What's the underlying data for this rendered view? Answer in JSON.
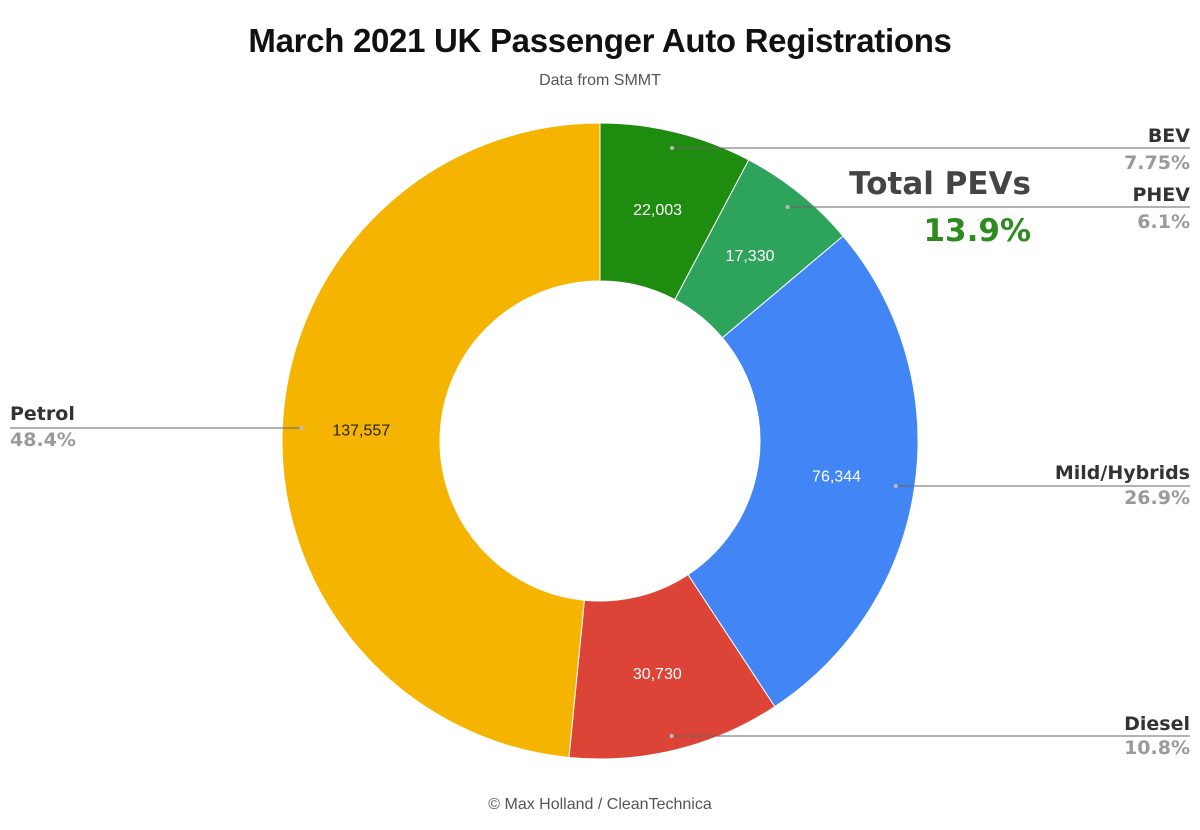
{
  "chart_data": {
    "type": "pie",
    "title": "March 2021 UK Passenger Auto Registrations",
    "subtitle": "Data from SMMT",
    "footer": "© Max Holland / CleanTechnica",
    "donut": true,
    "slices": [
      {
        "name": "BEV",
        "value": 22003,
        "value_label": "22,003",
        "pct_label": "7.75%",
        "color": "#1e8c0f"
      },
      {
        "name": "PHEV",
        "value": 17330,
        "value_label": "17,330",
        "pct_label": "6.1%",
        "color": "#2ea35b"
      },
      {
        "name": "Mild/Hybrids",
        "value": 76344,
        "value_label": "76,344",
        "pct_label": "26.9%",
        "color": "#4285f4"
      },
      {
        "name": "Diesel",
        "value": 30730,
        "value_label": "30,730",
        "pct_label": "10.8%",
        "color": "#db4437"
      },
      {
        "name": "Petrol",
        "value": 137557,
        "value_label": "137,557",
        "pct_label": "48.4%",
        "color": "#f4b400"
      }
    ],
    "annotation": {
      "title": "Total PEVs",
      "value": "13.9%",
      "color": "#2e8b1f"
    }
  }
}
